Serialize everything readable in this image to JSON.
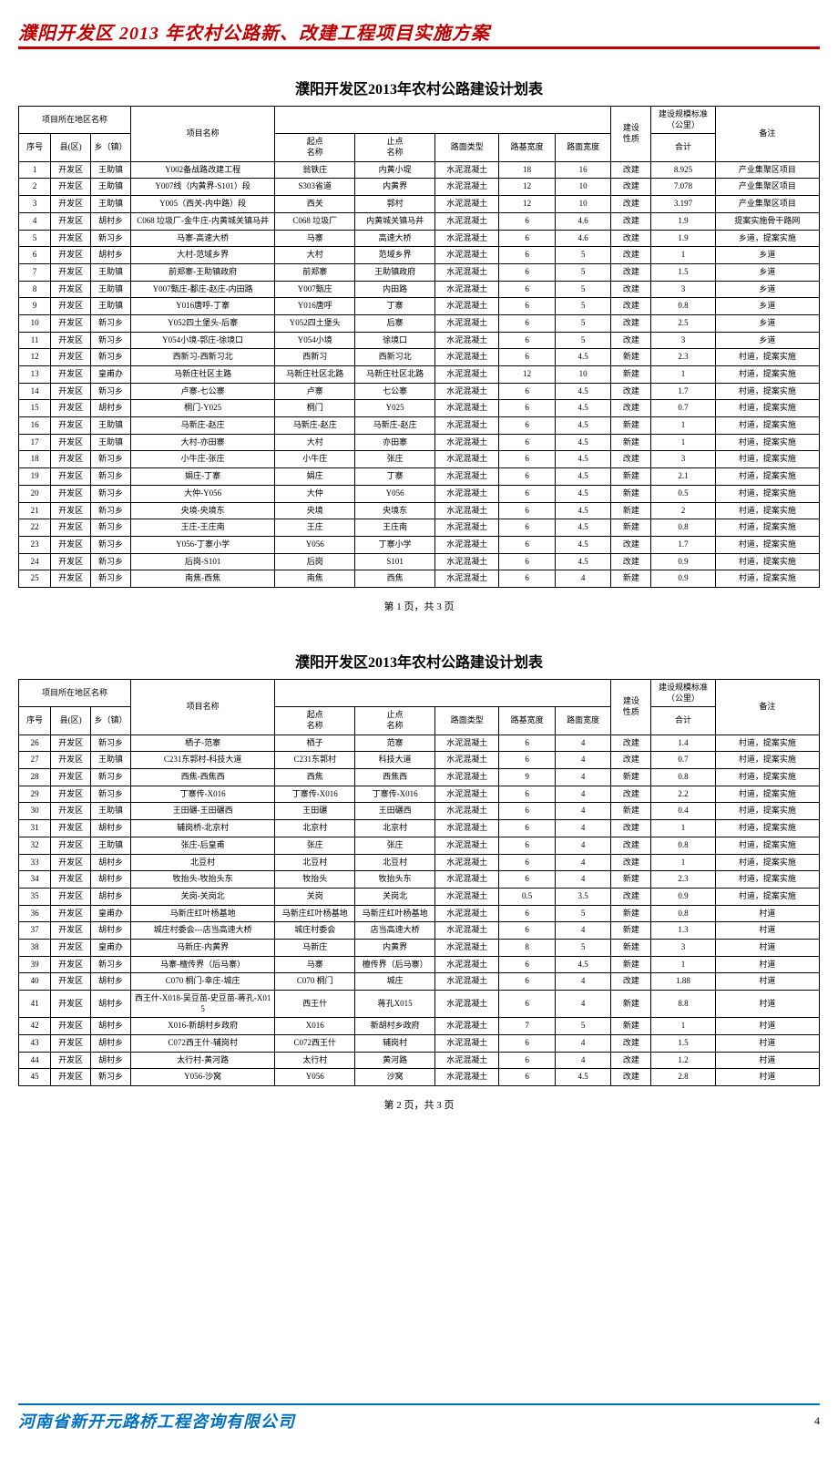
{
  "document": {
    "header_title": "濮阳开发区 2013 年农村公路新、改建工程项目实施方案",
    "table_title": "濮阳开发区2013年农村公路建设计划表",
    "footer_company": "河南省新开元路桥工程咨询有限公司",
    "footer_page_number": "4"
  },
  "columns": {
    "group_area": "项目所在地区名称",
    "seq": "序号",
    "county": "县(区)",
    "town": "乡（镇）",
    "project": "项目名称",
    "start": "起点\n名称",
    "end": "止点\n名称",
    "surface": "路面类型",
    "base_w": "路基宽度",
    "surf_w": "路面宽度",
    "nature": "建设\n性质",
    "scale_group": "建设规模标准（公里）",
    "total": "合计",
    "remark": "备注"
  },
  "table1": {
    "pager": "第 1 页，共 3 页",
    "rows": [
      [
        "1",
        "开发区",
        "王助镇",
        "Y002备战路改建工程",
        "翁铁庄",
        "内黄小堤",
        "水泥混凝土",
        "18",
        "16",
        "改建",
        "8.925",
        "产业集聚区项目"
      ],
      [
        "2",
        "开发区",
        "王助镇",
        "Y007线（内黄界-S101）段",
        "S303省道",
        "内黄界",
        "水泥混凝土",
        "12",
        "10",
        "改建",
        "7.078",
        "产业集聚区项目"
      ],
      [
        "3",
        "开发区",
        "王助镇",
        "Y005（西关-内中路）段",
        "西关",
        "郭村",
        "水泥混凝土",
        "12",
        "10",
        "改建",
        "3.197",
        "产业集聚区项目"
      ],
      [
        "4",
        "开发区",
        "胡村乡",
        "C068 垃圾厂-金牛庄-内黄城关镇马井",
        "C068 垃圾厂",
        "内黄城关镇马井",
        "水泥混凝土",
        "6",
        "4.6",
        "改建",
        "1.9",
        "提案实施骨干路网"
      ],
      [
        "5",
        "开发区",
        "新习乡",
        "马寨-高速大桥",
        "马寨",
        "高速大桥",
        "水泥混凝土",
        "6",
        "4.6",
        "改建",
        "1.9",
        "乡道，提案实施"
      ],
      [
        "6",
        "开发区",
        "胡村乡",
        "大村-范域乡界",
        "大村",
        "范域乡界",
        "水泥混凝土",
        "6",
        "5",
        "改建",
        "1",
        "乡道"
      ],
      [
        "7",
        "开发区",
        "王助镇",
        "前郑寨-王助镇政府",
        "前郑寨",
        "王助镇政府",
        "水泥混凝土",
        "6",
        "5",
        "改建",
        "1.5",
        "乡道"
      ],
      [
        "8",
        "开发区",
        "王助镇",
        "Y007甄庄-鄱庄-赵庄-内田路",
        "Y007甄庄",
        "内田路",
        "水泥混凝土",
        "6",
        "5",
        "改建",
        "3",
        "乡道"
      ],
      [
        "9",
        "开发区",
        "王助镇",
        "Y016唐呼-丁寨",
        "Y016唐呼",
        "丁寨",
        "水泥混凝土",
        "6",
        "5",
        "改建",
        "0.8",
        "乡道"
      ],
      [
        "10",
        "开发区",
        "新习乡",
        "Y052四土堡头-后寨",
        "Y052四土堡头",
        "后寨",
        "水泥混凝土",
        "6",
        "5",
        "改建",
        "2.5",
        "乡道"
      ],
      [
        "11",
        "开发区",
        "新习乡",
        "Y054小境-郭庄-徐境口",
        "Y054小境",
        "徐境口",
        "水泥混凝土",
        "6",
        "5",
        "改建",
        "3",
        "乡道"
      ],
      [
        "12",
        "开发区",
        "新习乡",
        "西新习-西新习北",
        "西新习",
        "西新习北",
        "水泥混凝土",
        "6",
        "4.5",
        "新建",
        "2.3",
        "村道，提案实施"
      ],
      [
        "13",
        "开发区",
        "皇甫办",
        "马新庄社区主路",
        "马新庄社区北路",
        "马新庄社区北路",
        "水泥混凝土",
        "12",
        "10",
        "新建",
        "1",
        "村道，提案实施"
      ],
      [
        "14",
        "开发区",
        "新习乡",
        "卢寨-七公寨",
        "卢寨",
        "七公寨",
        "水泥混凝土",
        "6",
        "4.5",
        "改建",
        "1.7",
        "村道，提案实施"
      ],
      [
        "15",
        "开发区",
        "胡村乡",
        "桐门-Y025",
        "桐门",
        "Y025",
        "水泥混凝土",
        "6",
        "4.5",
        "改建",
        "0.7",
        "村道，提案实施"
      ],
      [
        "16",
        "开发区",
        "王助镇",
        "马新庄-赵庄",
        "马新庄-赵庄",
        "马新庄-赵庄",
        "水泥混凝土",
        "6",
        "4.5",
        "新建",
        "1",
        "村道，提案实施"
      ],
      [
        "17",
        "开发区",
        "王助镇",
        "大村-亦田寨",
        "大村",
        "亦田寨",
        "水泥混凝土",
        "6",
        "4.5",
        "新建",
        "1",
        "村道，提案实施"
      ],
      [
        "18",
        "开发区",
        "新习乡",
        "小牛庄-张庄",
        "小牛庄",
        "张庄",
        "水泥混凝土",
        "6",
        "4.5",
        "改建",
        "3",
        "村道，提案实施"
      ],
      [
        "19",
        "开发区",
        "新习乡",
        "娟庄-丁寨",
        "娟庄",
        "丁寨",
        "水泥混凝土",
        "6",
        "4.5",
        "新建",
        "2.1",
        "村道，提案实施"
      ],
      [
        "20",
        "开发区",
        "新习乡",
        "大仲-Y056",
        "大仲",
        "Y056",
        "水泥混凝土",
        "6",
        "4.5",
        "新建",
        "0.5",
        "村道，提案实施"
      ],
      [
        "21",
        "开发区",
        "新习乡",
        "央境-央境东",
        "央境",
        "央境东",
        "水泥混凝土",
        "6",
        "4.5",
        "新建",
        "2",
        "村道，提案实施"
      ],
      [
        "22",
        "开发区",
        "新习乡",
        "王庄-王庄南",
        "王庄",
        "王庄南",
        "水泥混凝土",
        "6",
        "4.5",
        "新建",
        "0.8",
        "村道，提案实施"
      ],
      [
        "23",
        "开发区",
        "新习乡",
        "Y056-丁寨小学",
        "Y056",
        "丁寨小学",
        "水泥混凝土",
        "6",
        "4.5",
        "改建",
        "1.7",
        "村道，提案实施"
      ],
      [
        "24",
        "开发区",
        "新习乡",
        "后岗-S101",
        "后岗",
        "S101",
        "水泥混凝土",
        "6",
        "4.5",
        "改建",
        "0.9",
        "村道，提案实施"
      ],
      [
        "25",
        "开发区",
        "新习乡",
        "南焦-西焦",
        "南焦",
        "西焦",
        "水泥混凝土",
        "6",
        "4",
        "新建",
        "0.9",
        "村道，提案实施"
      ]
    ]
  },
  "table2": {
    "pager": "第 2 页，共 3 页",
    "rows": [
      [
        "26",
        "开发区",
        "新习乡",
        "栖子-范寨",
        "栖子",
        "范寨",
        "水泥混凝土",
        "6",
        "4",
        "改建",
        "1.4",
        "村道，提案实施"
      ],
      [
        "27",
        "开发区",
        "王助镇",
        "C231东郭村-科技大道",
        "C231东郭村",
        "科技大道",
        "水泥混凝土",
        "6",
        "4",
        "改建",
        "0.7",
        "村道，提案实施"
      ],
      [
        "28",
        "开发区",
        "新习乡",
        "西焦-西焦西",
        "西焦",
        "西焦西",
        "水泥混凝土",
        "9",
        "4",
        "新建",
        "0.8",
        "村道，提案实施"
      ],
      [
        "29",
        "开发区",
        "新习乡",
        "丁寨传-X016",
        "丁寨传-X016",
        "丁寨传-X016",
        "水泥混凝土",
        "6",
        "4",
        "改建",
        "2.2",
        "村道，提案实施"
      ],
      [
        "30",
        "开发区",
        "王助镇",
        "王田碾-王田碾西",
        "王田碾",
        "王田碾西",
        "水泥混凝土",
        "6",
        "4",
        "新建",
        "0.4",
        "村道，提案实施"
      ],
      [
        "31",
        "开发区",
        "胡村乡",
        "辅岗桥-北京村",
        "北京村",
        "北京村",
        "水泥混凝土",
        "6",
        "4",
        "改建",
        "1",
        "村道，提案实施"
      ],
      [
        "32",
        "开发区",
        "王助镇",
        "张庄-后皇甫",
        "张庄",
        "张庄",
        "水泥混凝土",
        "6",
        "4",
        "改建",
        "0.8",
        "村道，提案实施"
      ],
      [
        "33",
        "开发区",
        "胡村乡",
        "北豆村",
        "北豆村",
        "北豆村",
        "水泥混凝土",
        "6",
        "4",
        "改建",
        "1",
        "村道，提案实施"
      ],
      [
        "34",
        "开发区",
        "胡村乡",
        "牧抬头-牧抬头东",
        "牧抬头",
        "牧抬头东",
        "水泥混凝土",
        "6",
        "4",
        "新建",
        "2.3",
        "村道，提案实施"
      ],
      [
        "35",
        "开发区",
        "胡村乡",
        "关岗-关岗北",
        "关岗",
        "关岗北",
        "水泥混凝土",
        "0.5",
        "3.5",
        "改建",
        "0.9",
        "村道，提案实施"
      ],
      [
        "36",
        "开发区",
        "皇甫办",
        "马新庄红叶杨基地",
        "马新庄红叶杨基地",
        "马新庄红叶杨基地",
        "水泥混凝土",
        "6",
        "5",
        "新建",
        "0.8",
        "村道"
      ],
      [
        "37",
        "开发区",
        "胡村乡",
        "城庄村委会---店当高速大桥",
        "城庄村委会",
        "店当高速大桥",
        "水泥混凝土",
        "6",
        "4",
        "新建",
        "1.3",
        "村道"
      ],
      [
        "38",
        "开发区",
        "皇甫办",
        "马新庄-内黄界",
        "马新庄",
        "内黄界",
        "水泥混凝土",
        "8",
        "5",
        "新建",
        "3",
        "村道"
      ],
      [
        "39",
        "开发区",
        "新习乡",
        "马寨-檀传界（后马寨）",
        "马寨",
        "檀传界（后马寨）",
        "水泥混凝土",
        "6",
        "4.5",
        "新建",
        "1",
        "村道"
      ],
      [
        "40",
        "开发区",
        "胡村乡",
        "C070 桐门-幸庄-城庄",
        "C070 桐门",
        "城庄",
        "水泥混凝土",
        "6",
        "4",
        "改建",
        "1.88",
        "村道"
      ],
      [
        "41",
        "开发区",
        "胡村乡",
        "西王什-X018-吴豆苗-史豆苗-蒋孔-X015",
        "西王什",
        "蒋孔X015",
        "水泥混凝土",
        "6",
        "4",
        "新建",
        "8.8",
        "村道"
      ],
      [
        "42",
        "开发区",
        "胡村乡",
        "X016-新胡村乡政府",
        "X016",
        "新胡村乡政府",
        "水泥混凝土",
        "7",
        "5",
        "新建",
        "1",
        "村道"
      ],
      [
        "43",
        "开发区",
        "胡村乡",
        "C072西王什-辅岗村",
        "C072西王什",
        "辅岗村",
        "水泥混凝土",
        "6",
        "4",
        "改建",
        "1.5",
        "村道"
      ],
      [
        "44",
        "开发区",
        "胡村乡",
        "太行村-黄河路",
        "太行村",
        "黄河路",
        "水泥混凝土",
        "6",
        "4",
        "改建",
        "1.2",
        "村道"
      ],
      [
        "45",
        "开发区",
        "新习乡",
        "Y056-沙窝",
        "Y056",
        "沙窝",
        "水泥混凝土",
        "6",
        "4.5",
        "改建",
        "2.8",
        "村道"
      ]
    ]
  },
  "colwidths": [
    "4%",
    "5%",
    "5%",
    "18%",
    "10%",
    "10%",
    "8%",
    "7%",
    "7%",
    "5%",
    "8%",
    "13%"
  ]
}
